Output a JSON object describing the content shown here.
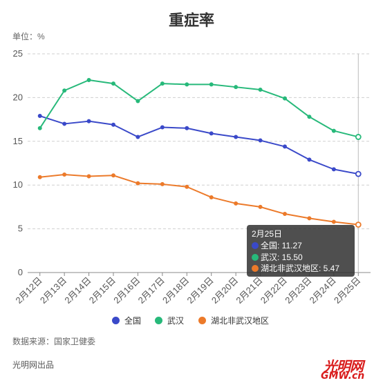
{
  "header": {
    "title": "重症率",
    "unit": "单位：%"
  },
  "chart_data": {
    "type": "line",
    "categories": [
      "2月12日",
      "2月13日",
      "2月14日",
      "2月15日",
      "2月16日",
      "2月17日",
      "2月18日",
      "2月19日",
      "2月20日",
      "2月21日",
      "2月22日",
      "2月23日",
      "2月24日",
      "2月25日"
    ],
    "ylim": [
      0,
      25
    ],
    "yticks": [
      0,
      5,
      10,
      15,
      20,
      25
    ],
    "grid": "horizontal dashed",
    "legend_position": "bottom",
    "series": [
      {
        "name": "全国",
        "color": "#3a49c9",
        "values": [
          17.9,
          17.0,
          17.3,
          16.9,
          15.5,
          16.6,
          16.5,
          15.9,
          15.5,
          15.1,
          14.4,
          12.9,
          11.8,
          11.27
        ]
      },
      {
        "name": "武汉",
        "color": "#27b97a",
        "values": [
          16.5,
          20.8,
          22.0,
          21.6,
          19.6,
          21.6,
          21.5,
          21.5,
          21.2,
          20.9,
          19.9,
          17.8,
          16.2,
          15.5
        ]
      },
      {
        "name": "湖北非武汉地区",
        "color": "#ec7a2a",
        "values": [
          10.9,
          11.2,
          11.0,
          11.1,
          10.2,
          10.1,
          9.8,
          8.6,
          7.9,
          7.5,
          6.7,
          6.2,
          5.8,
          5.47
        ]
      }
    ],
    "highlight_index": 13
  },
  "tooltip": {
    "header": "2月25日",
    "rows": [
      {
        "text": "全国: 11.27",
        "color": "#3a49c9"
      },
      {
        "text": "武汉: 15.50",
        "color": "#27b97a"
      },
      {
        "text": "湖北非武汉地区: 5.47",
        "color": "#ec7a2a"
      }
    ]
  },
  "footer": {
    "source": "数据来源：国家卫健委",
    "credit": "光明网出品",
    "logo_brand": "光明网",
    "logo_domain": "GMW.cn"
  }
}
